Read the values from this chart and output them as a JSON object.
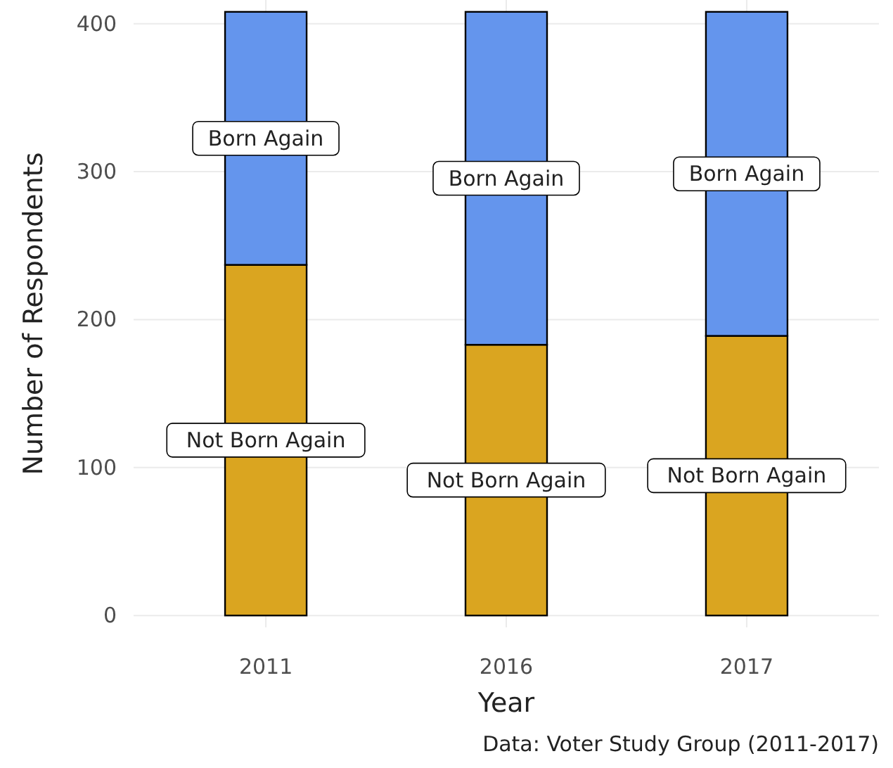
{
  "chart_data": {
    "type": "bar",
    "stacked": true,
    "xlabel": "Year",
    "ylabel": "Number of Respondents",
    "categories": [
      "2011",
      "2016",
      "2017"
    ],
    "series": [
      {
        "name": "Not Born Again",
        "color": "#daa520",
        "values": [
          237,
          183,
          189
        ]
      },
      {
        "name": "Born Again",
        "color": "#6495ed",
        "values": [
          171,
          225,
          219
        ]
      }
    ],
    "ylim": [
      -8,
      416
    ],
    "yticks": [
      0,
      100,
      200,
      300,
      400
    ],
    "grid": true,
    "legend": false,
    "annotations": [
      "Data: Voter Study Group (2011-2017)"
    ]
  }
}
